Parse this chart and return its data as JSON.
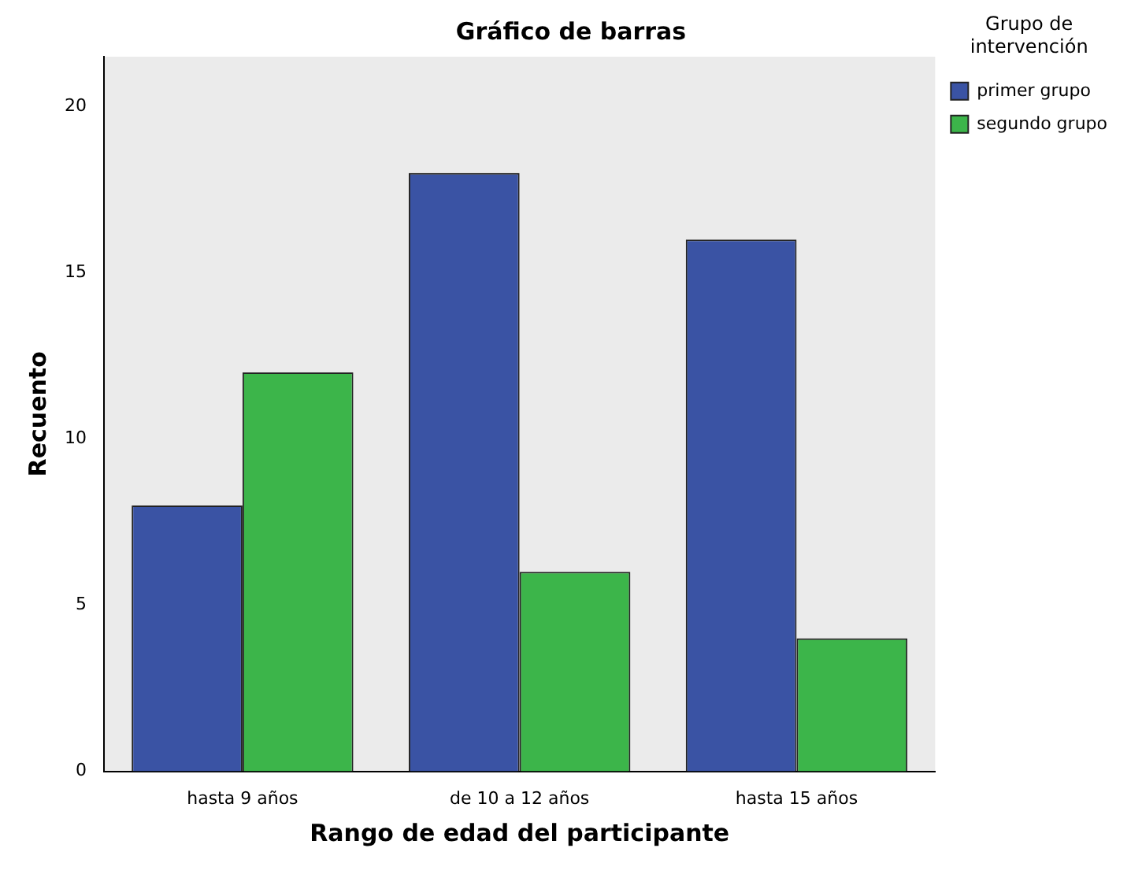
{
  "chart_data": {
    "type": "bar",
    "title": "Gráfico de barras",
    "xlabel": "Rango de edad del participante",
    "ylabel": "Recuento",
    "legend_title": "Grupo de intervención",
    "categories": [
      "hasta 9 años",
      "de 10 a 12 años",
      "hasta 15 años"
    ],
    "series": [
      {
        "name": "primer grupo",
        "color": "#3a53a4",
        "values": [
          8,
          18,
          16
        ]
      },
      {
        "name": "segundo grupo",
        "color": "#3cb54a",
        "values": [
          12,
          6,
          4
        ]
      }
    ],
    "ylim": [
      0,
      21.5
    ],
    "yticks": [
      0,
      5,
      10,
      15,
      20
    ],
    "grid": false,
    "legend": "top right"
  }
}
